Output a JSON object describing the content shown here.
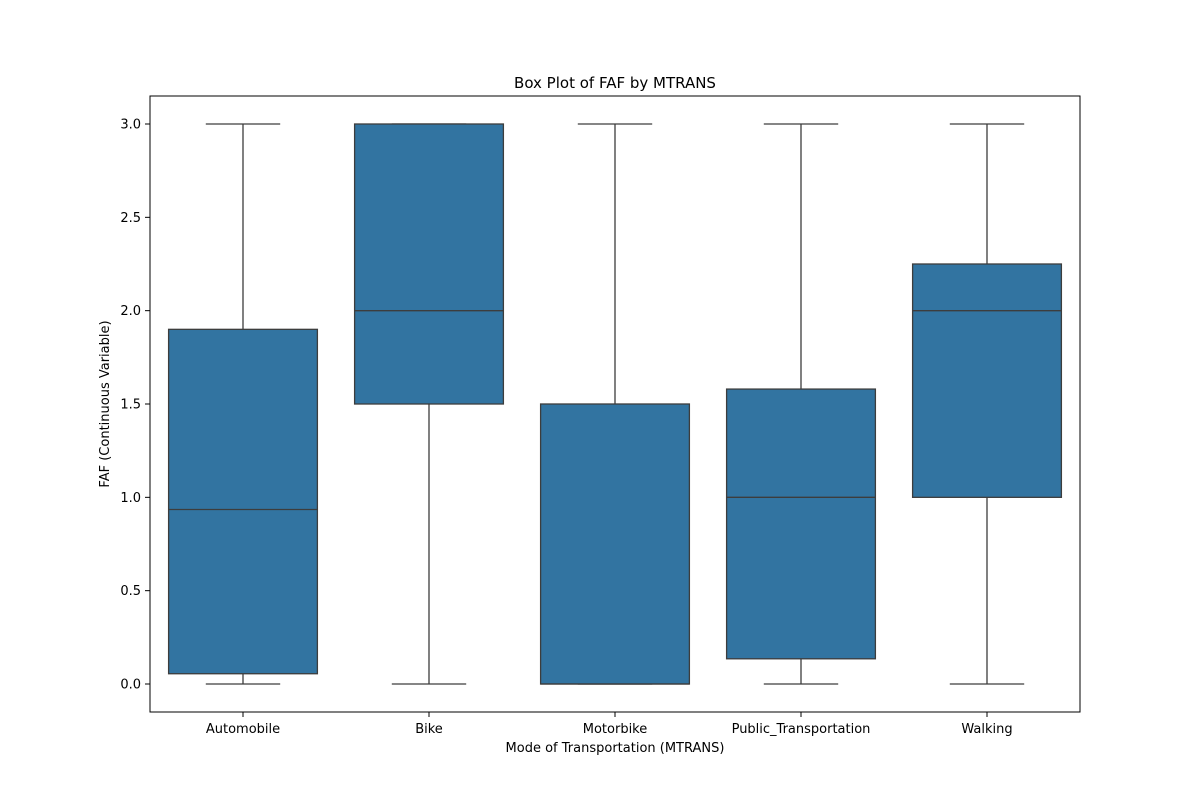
{
  "chart_data": {
    "type": "box",
    "title": "Box Plot of FAF by MTRANS",
    "xlabel": "Mode of Transportation (MTRANS)",
    "ylabel": "FAF (Continuous Variable)",
    "ylim": [
      -0.15,
      3.15
    ],
    "yticks": [
      "0.0",
      "0.5",
      "1.0",
      "1.5",
      "2.0",
      "2.5",
      "3.0"
    ],
    "grid": false,
    "box_color": "#3274a1",
    "categories": [
      "Automobile",
      "Bike",
      "Motorbike",
      "Public_Transportation",
      "Walking"
    ],
    "boxes": [
      {
        "category": "Automobile",
        "min": 0.0,
        "q1": 0.055,
        "median": 0.935,
        "q3": 1.9,
        "max": 3.0
      },
      {
        "category": "Bike",
        "min": 0.0,
        "q1": 1.5,
        "median": 2.0,
        "q3": 3.0,
        "max": 3.0
      },
      {
        "category": "Motorbike",
        "min": 0.0,
        "q1": 0.0,
        "median": 0.0,
        "q3": 1.5,
        "max": 3.0
      },
      {
        "category": "Public_Transportation",
        "min": 0.0,
        "q1": 0.135,
        "median": 1.0,
        "q3": 1.58,
        "max": 3.0
      },
      {
        "category": "Walking",
        "min": 0.0,
        "q1": 1.0,
        "median": 2.0,
        "q3": 2.25,
        "max": 3.0
      }
    ]
  }
}
